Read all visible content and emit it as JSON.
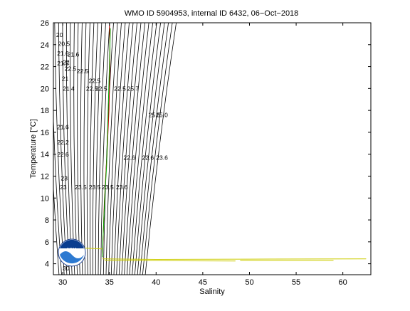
{
  "chart_data": {
    "type": "line",
    "title": "WMO ID 5904953, internal ID 6432, 06−Oct−2018",
    "xlabel": "Salinity",
    "ylabel": "Temperature [°C]",
    "xlim": [
      29,
      63
    ],
    "ylim": [
      3,
      26
    ],
    "x_ticks": [
      30,
      35,
      40,
      45,
      50,
      55,
      60
    ],
    "y_ticks": [
      4,
      6,
      8,
      10,
      12,
      14,
      16,
      18,
      20,
      22,
      24,
      26
    ],
    "grid": false,
    "legend": "none",
    "isopycnal_labels": [
      {
        "x": 29.3,
        "y": 24.7,
        "text": "20"
      },
      {
        "x": 29.5,
        "y": 23.9,
        "text": "20.5"
      },
      {
        "x": 29.4,
        "y": 23.0,
        "text": "21.6"
      },
      {
        "x": 30.5,
        "y": 22.9,
        "text": "21.6"
      },
      {
        "x": 29.4,
        "y": 22.1,
        "text": "21.5"
      },
      {
        "x": 30.0,
        "y": 22.2,
        "text": "22"
      },
      {
        "x": 30.2,
        "y": 21.6,
        "text": "22.5"
      },
      {
        "x": 31.5,
        "y": 21.4,
        "text": "22.5"
      },
      {
        "x": 29.9,
        "y": 20.7,
        "text": "21"
      },
      {
        "x": 32.8,
        "y": 20.5,
        "text": "22.5"
      },
      {
        "x": 30.0,
        "y": 19.8,
        "text": "21.4"
      },
      {
        "x": 32.5,
        "y": 19.8,
        "text": "22.5"
      },
      {
        "x": 33.5,
        "y": 19.8,
        "text": "22.5"
      },
      {
        "x": 35.5,
        "y": 19.8,
        "text": "22.5"
      },
      {
        "x": 36.9,
        "y": 19.8,
        "text": "25.7"
      },
      {
        "x": 39.2,
        "y": 17.4,
        "text": "25.5"
      },
      {
        "x": 40.0,
        "y": 17.4,
        "text": "25.0"
      },
      {
        "x": 29.4,
        "y": 16.3,
        "text": "21.6"
      },
      {
        "x": 29.4,
        "y": 14.9,
        "text": "22.2"
      },
      {
        "x": 29.4,
        "y": 13.8,
        "text": "22.6"
      },
      {
        "x": 36.5,
        "y": 13.5,
        "text": "22.6"
      },
      {
        "x": 38.5,
        "y": 13.5,
        "text": "22.6"
      },
      {
        "x": 40.0,
        "y": 13.5,
        "text": "23.6"
      },
      {
        "x": 29.8,
        "y": 11.6,
        "text": "23"
      },
      {
        "x": 29.7,
        "y": 10.8,
        "text": "23"
      },
      {
        "x": 31.3,
        "y": 10.8,
        "text": "23.5"
      },
      {
        "x": 32.8,
        "y": 10.8,
        "text": "23.5"
      },
      {
        "x": 34.2,
        "y": 10.8,
        "text": "23.5"
      },
      {
        "x": 35.7,
        "y": 10.8,
        "text": "23.6"
      },
      {
        "x": 30.0,
        "y": 3.4,
        "text": "30"
      }
    ],
    "series": [
      {
        "color": "#cc0000",
        "x": [
          35.0,
          35.05,
          35.05,
          35.0,
          34.95,
          34.85,
          34.75,
          34.6,
          34.45,
          34.35,
          34.25
        ],
        "y": [
          25.8,
          24.0,
          22.0,
          20.0,
          18.0,
          16.0,
          14.0,
          12.0,
          9.5,
          7.0,
          4.6
        ]
      },
      {
        "color": "#00aa00",
        "x": [
          35.1,
          35.0,
          34.9,
          34.8,
          34.7,
          34.5,
          34.4,
          34.3,
          34.25
        ],
        "y": [
          25.5,
          22.0,
          19.0,
          16.0,
          13.0,
          10.0,
          8.0,
          6.0,
          4.6
        ]
      },
      {
        "color": "#cccc00",
        "x": [
          34.25,
          40,
          50,
          62.5
        ],
        "y": [
          4.45,
          4.4,
          4.42,
          4.45
        ]
      },
      {
        "color": "#cccc00",
        "x": [
          30.5,
          34.2
        ],
        "y": [
          5.5,
          5.35
        ]
      },
      {
        "color": "#cccc00",
        "x": [
          34.5,
          48.5
        ],
        "y": [
          4.3,
          4.25
        ]
      },
      {
        "color": "#cccc00",
        "x": [
          49.0,
          59.0
        ],
        "y": [
          4.3,
          4.3
        ]
      }
    ],
    "logo": {
      "text": "NOAA",
      "colors": [
        "#0a3d8f",
        "#2d7ad1",
        "#ffffff"
      ]
    }
  }
}
